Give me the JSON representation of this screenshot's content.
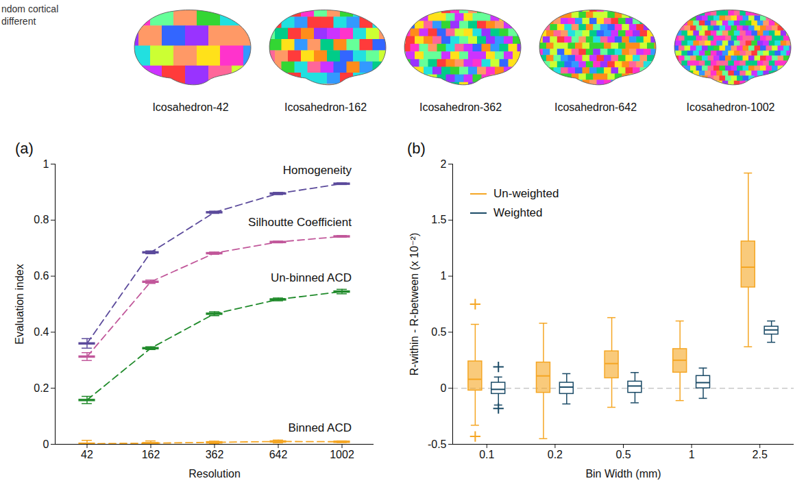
{
  "caption": [
    "ndom cortical",
    "different"
  ],
  "image_labels": [
    "Icosahedron-42",
    "Icosahedron-162",
    "Icosahedron-362",
    "Icosahedron-642",
    "Icosahedron-1002"
  ],
  "chart_data": [
    {
      "type": "line",
      "panel": "(a)",
      "x_label": "Resolution",
      "y_label": "Evaluation index",
      "categories": [
        42,
        162,
        362,
        642,
        1002
      ],
      "ylim": [
        0,
        1
      ],
      "yticks": [
        0,
        0.2,
        0.4,
        0.6,
        0.8,
        1
      ],
      "series": [
        {
          "name": "Homogeneity",
          "color": "#5b4a9b",
          "line_style": "dashed",
          "values": [
            0.36,
            0.685,
            0.828,
            0.895,
            0.93
          ],
          "error": [
            0.017,
            0.005,
            0.004,
            0.004,
            0.003
          ]
        },
        {
          "name": "Silhoutte Coefficient",
          "color": "#c1579a",
          "line_style": "dashed",
          "values": [
            0.313,
            0.58,
            0.682,
            0.722,
            0.742
          ],
          "error": [
            0.014,
            0.006,
            0.004,
            0.003,
            0.003
          ]
        },
        {
          "name": "Un-binned ACD",
          "color": "#1f8a2a",
          "line_style": "dashed",
          "values": [
            0.158,
            0.343,
            0.466,
            0.517,
            0.545
          ],
          "error": [
            0.013,
            0.005,
            0.007,
            0.005,
            0.008
          ]
        },
        {
          "name": "Binned ACD",
          "color": "#f5a623",
          "line_style": "dashed",
          "values": [
            0.002,
            0.004,
            0.007,
            0.01,
            0.009
          ],
          "error": [
            0.012,
            0.008,
            0.004,
            0.005,
            0.003
          ]
        }
      ]
    },
    {
      "type": "box",
      "panel": "(b)",
      "x_label": "Bin Width (mm)",
      "y_label": "R-within - R-between (x 10⁻²)",
      "categories": [
        0.1,
        0.2,
        0.5,
        1,
        2.5
      ],
      "ylim": [
        -0.5,
        2
      ],
      "yticks": [
        -0.5,
        0,
        0.5,
        1,
        1.5,
        2
      ],
      "legend": "top-left",
      "series": [
        {
          "name": "Un-weighted",
          "color": "#f5a623",
          "marker": "plus",
          "boxes": [
            {
              "min": -0.33,
              "q1": -0.02,
              "median": 0.08,
              "q3": 0.24,
              "max": 0.57,
              "outliers": [
                0.75,
                -0.43
              ]
            },
            {
              "min": -0.45,
              "q1": -0.04,
              "median": 0.11,
              "q3": 0.23,
              "max": 0.58,
              "outliers": []
            },
            {
              "min": -0.17,
              "q1": 0.09,
              "median": 0.22,
              "q3": 0.33,
              "max": 0.63,
              "outliers": []
            },
            {
              "min": -0.11,
              "q1": 0.14,
              "median": 0.25,
              "q3": 0.35,
              "max": 0.6,
              "outliers": []
            },
            {
              "min": 0.37,
              "q1": 0.9,
              "median": 1.08,
              "q3": 1.31,
              "max": 1.92,
              "outliers": []
            }
          ]
        },
        {
          "name": "Weighted",
          "color": "#1a4a66",
          "marker": "plus",
          "boxes": [
            {
              "min": -0.15,
              "q1": -0.05,
              "median": -0.01,
              "q3": 0.05,
              "max": 0.1,
              "outliers": [
                0.19,
                -0.18
              ]
            },
            {
              "min": -0.14,
              "q1": -0.05,
              "median": 0.01,
              "q3": 0.05,
              "max": 0.13,
              "outliers": []
            },
            {
              "min": -0.13,
              "q1": -0.04,
              "median": 0.02,
              "q3": 0.06,
              "max": 0.14,
              "outliers": []
            },
            {
              "min": -0.09,
              "q1": 0.0,
              "median": 0.05,
              "q3": 0.11,
              "max": 0.18,
              "outliers": []
            },
            {
              "min": 0.41,
              "q1": 0.48,
              "median": 0.52,
              "q3": 0.55,
              "max": 0.6,
              "outliers": []
            }
          ]
        }
      ]
    }
  ]
}
